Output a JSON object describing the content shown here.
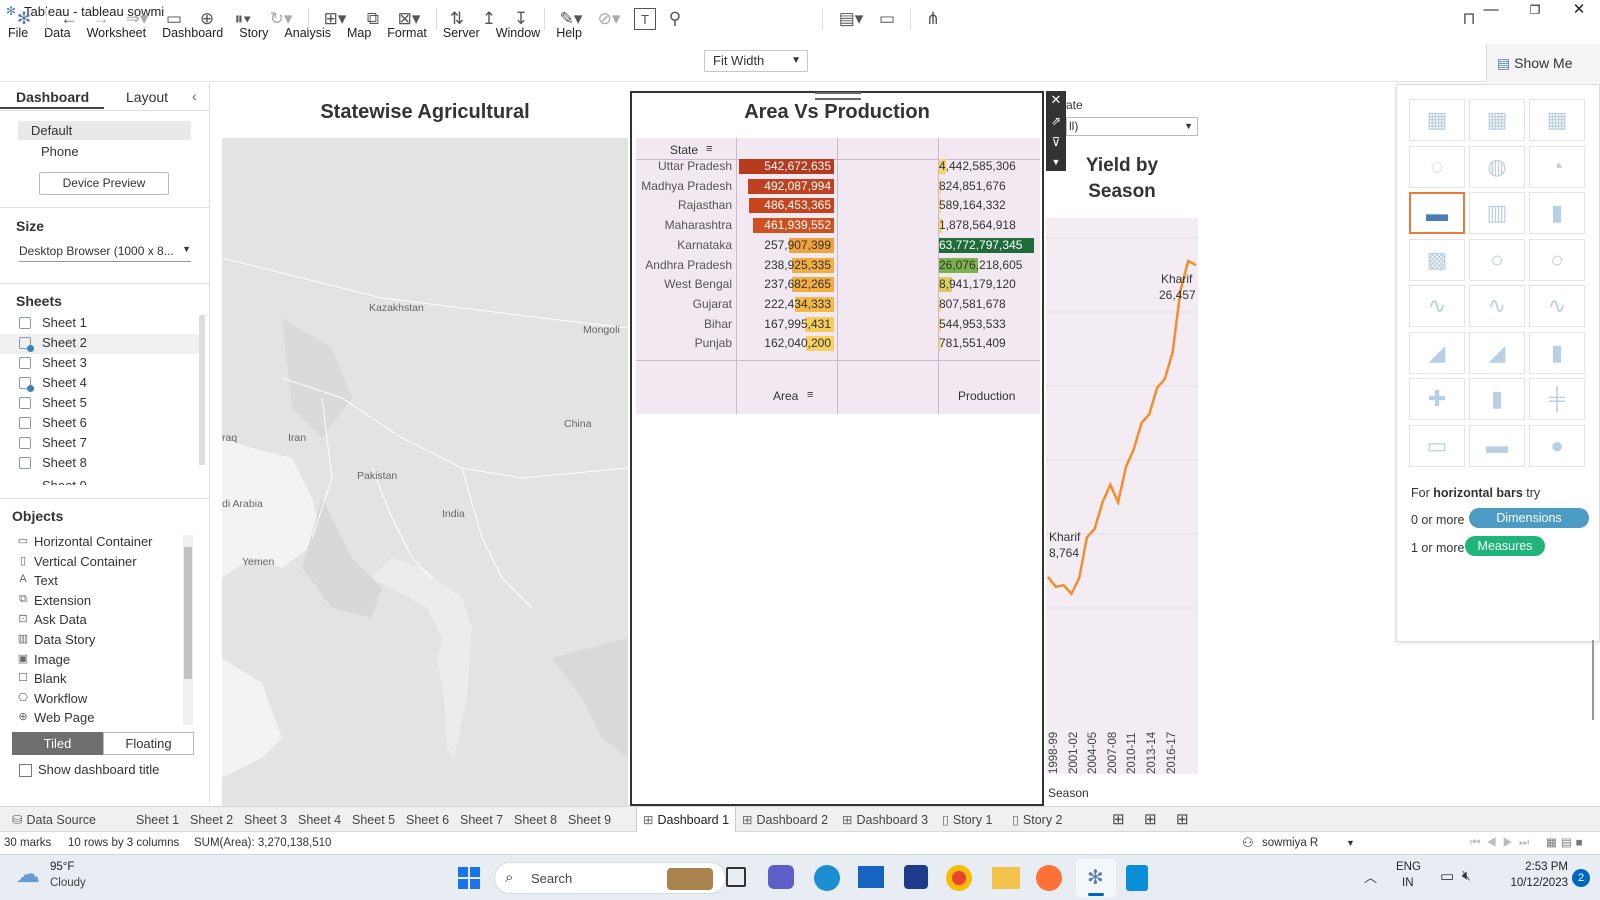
{
  "window": {
    "title": "Tableau - tableau sowmi",
    "min": "—",
    "max": "❐",
    "close": "✕"
  },
  "menu": [
    "File",
    "Data",
    "Worksheet",
    "Dashboard",
    "Story",
    "Analysis",
    "Map",
    "Format",
    "Server",
    "Window",
    "Help"
  ],
  "toolbar": {
    "fit": "Fit Width",
    "show_me": "Show Me"
  },
  "left_panel": {
    "tab_dashboard": "Dashboard",
    "tab_layout": "Layout",
    "devices": [
      "Default",
      "Phone"
    ],
    "device_preview": "Device Preview",
    "size_label": "Size",
    "size_value": "Desktop Browser (1000 x 8...",
    "sheets_label": "Sheets",
    "sheets": [
      "Sheet 1",
      "Sheet 2",
      "Sheet 3",
      "Sheet 4",
      "Sheet 5",
      "Sheet 6",
      "Sheet 7",
      "Sheet 8",
      "Sheet 9"
    ],
    "objects_label": "Objects",
    "objects": [
      "Horizontal Container",
      "Vertical Container",
      "Text",
      "Extension",
      "Ask Data",
      "Data Story",
      "Image",
      "Blank",
      "Workflow",
      "Web Page"
    ],
    "tiled": "Tiled",
    "floating": "Floating",
    "show_title": "Show dashboard title"
  },
  "map": {
    "title": "Statewise Agricultural",
    "labels": [
      "Kazakhstan",
      "Mongoli",
      "Iran",
      "China",
      "raq",
      "Pakistan",
      "India",
      "di Arabia",
      "Yemen"
    ]
  },
  "area_prod": {
    "title": "Area Vs Production",
    "col_state": "State",
    "col_area": "Area",
    "col_production": "Production",
    "rows": [
      {
        "state": "Uttar Pradesh",
        "area": "542,672,635",
        "production": "4,442,585,306",
        "area_color": "#b63a1e",
        "prod_color": "#f3d56b"
      },
      {
        "state": "Madhya Pradesh",
        "area": "492,087,994",
        "production": "824,851,676",
        "area_color": "#bf4220",
        "prod_color": "#f7dc75"
      },
      {
        "state": "Rajasthan",
        "area": "486,453,365",
        "production": "589,164,332",
        "area_color": "#c3461f",
        "prod_color": "#f7dc75"
      },
      {
        "state": "Maharashtra",
        "area": "461,939,552",
        "production": "1,878,564,918",
        "area_color": "#cd5121",
        "prod_color": "#f5d970"
      },
      {
        "state": "Karnataka",
        "area": "257,907,399",
        "production": "63,772,797,345",
        "area_color": "#f0a33a",
        "prod_color": "#1f6b3a"
      },
      {
        "state": "Andhra Pradesh",
        "area": "238,925,335",
        "production": "26,076,218,605",
        "area_color": "#f2ad40",
        "prod_color": "#7cb24c"
      },
      {
        "state": "West Bengal",
        "area": "237,682,265",
        "production": "8,941,179,120",
        "area_color": "#f2ad40",
        "prod_color": "#d8cf5b"
      },
      {
        "state": "Gujarat",
        "area": "222,434,333",
        "production": "807,581,678",
        "area_color": "#f4b848",
        "prod_color": "#f7dc75"
      },
      {
        "state": "Bihar",
        "area": "167,995,431",
        "production": "544,953,533",
        "area_color": "#f6cc5a",
        "prod_color": "#f7dc75"
      },
      {
        "state": "Punjab",
        "area": "162,040,200",
        "production": "781,551,409",
        "area_color": "#f7d05e",
        "prod_color": "#f7dc75"
      }
    ],
    "area_fraction": [
      1.0,
      0.907,
      0.896,
      0.851,
      0.475,
      0.44,
      0.438,
      0.41,
      0.31,
      0.299
    ],
    "prod_fraction": [
      0.0697,
      0.0129,
      0.0092,
      0.0295,
      1.0,
      0.409,
      0.14,
      0.0127,
      0.0085,
      0.0123
    ]
  },
  "yield": {
    "title_line1": "Yield by",
    "title_line2": "Season",
    "filter_label": "ate",
    "filter_value": "ll)",
    "x_label": "Season",
    "ticks": [
      "1998-99",
      "2001-02",
      "2004-05",
      "2007-08",
      "2010-11",
      "2013-14",
      "2016-17"
    ],
    "start_label": "Kharif",
    "start_value": "8,764",
    "end_label": "Kharif",
    "end_value": "26,457",
    "line_color": "#f28e2b",
    "chart_data": {
      "type": "line",
      "series": [
        {
          "name": "Kharif",
          "values": [
            8764,
            8200,
            8300,
            7800,
            8700,
            11000,
            11500,
            13000,
            14000,
            13000,
            15000,
            16000,
            17500,
            18000,
            19500,
            20000,
            21500,
            25000,
            26700,
            26457
          ]
        }
      ]
    }
  },
  "show_me": {
    "hint_pre": "For ",
    "hint_bold": "horizontal bars",
    "hint_post": " try",
    "req1": "0 or more",
    "pill1": "Dimensions",
    "req2": "1 or more",
    "pill2": "Measures",
    "pill1_color": "#4b9bc4",
    "pill2_color": "#1fb479"
  },
  "tabs": [
    "Data Source",
    "Sheet 1",
    "Sheet 2",
    "Sheet 3",
    "Sheet 4",
    "Sheet 5",
    "Sheet 6",
    "Sheet 7",
    "Sheet 8",
    "Sheet 9",
    "Dashboard 1",
    "Dashboard 2",
    "Dashboard 3",
    "Story 1",
    "Story 2"
  ],
  "status": {
    "marks": "30 marks",
    "rows": "10 rows by 3 columns",
    "sum": "SUM(Area): 3,270,138,510",
    "user": "sowmiya R"
  },
  "taskbar": {
    "temp": "95°F",
    "weather": "Cloudy",
    "search": "Search",
    "lang1": "ENG",
    "lang2": "IN",
    "time": "2:53 PM",
    "date": "10/12/2023",
    "badge": "2"
  }
}
